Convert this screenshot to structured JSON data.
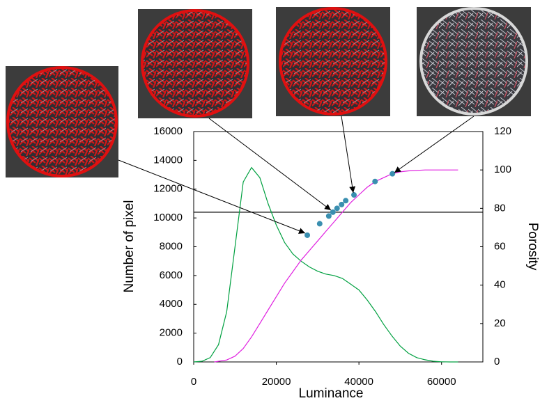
{
  "chart_data": {
    "type": "line",
    "x_label": "Luminance",
    "y_label": "Number of pixel",
    "y2_label": "Porosity",
    "xlim": [
      0,
      70000
    ],
    "xticks": [
      0,
      20000,
      40000,
      60000
    ],
    "ylim": [
      0,
      16000
    ],
    "yticks": [
      0,
      2000,
      4000,
      6000,
      8000,
      10000,
      12000,
      14000,
      16000
    ],
    "y2lim": [
      0,
      120
    ],
    "y2ticks": [
      0,
      20,
      40,
      60,
      80,
      100,
      120
    ],
    "hline": {
      "value": 78,
      "axis": "y2",
      "color": "#000000"
    },
    "series": [
      {
        "type": "line",
        "color": "#00a040",
        "axis": "y",
        "x": [
          0,
          2000,
          4000,
          6000,
          8000,
          10000,
          12000,
          14000,
          16000,
          18000,
          20000,
          22000,
          24000,
          26000,
          28000,
          30000,
          32000,
          34000,
          36000,
          38000,
          40000,
          42000,
          44000,
          46000,
          48000,
          50000,
          52000,
          54000,
          56000,
          58000,
          60000,
          62000,
          64000
        ],
        "values": [
          0,
          50,
          300,
          1200,
          3500,
          8000,
          12500,
          13500,
          12800,
          11000,
          9500,
          8300,
          7500,
          7000,
          6600,
          6300,
          6100,
          6000,
          5800,
          5400,
          5000,
          4300,
          3500,
          2600,
          1800,
          1100,
          600,
          300,
          150,
          50,
          10,
          0,
          0
        ]
      },
      {
        "type": "line",
        "color": "#e020e0",
        "axis": "y2",
        "x": [
          5000,
          8000,
          10000,
          12000,
          14000,
          16000,
          18000,
          20000,
          22000,
          24000,
          26000,
          28000,
          30000,
          32000,
          34000,
          36000,
          38000,
          40000,
          42000,
          44000,
          46000,
          48000,
          50000,
          52000,
          56000,
          60000,
          64000
        ],
        "values": [
          0,
          1,
          3,
          7,
          13,
          20,
          27,
          34,
          41,
          47,
          53,
          58,
          63,
          68,
          73,
          78,
          83,
          87,
          91,
          94,
          96,
          98,
          99,
          99.5,
          100,
          100,
          100
        ]
      },
      {
        "type": "scatter",
        "color": "#3a8fb0",
        "axis": "y2",
        "x": [
          27500,
          30500,
          32700,
          33700,
          34700,
          35800,
          36800,
          38800,
          43900,
          48100
        ],
        "values": [
          66,
          72,
          76,
          78,
          80,
          82,
          84,
          87,
          94,
          98
        ]
      }
    ]
  }
}
